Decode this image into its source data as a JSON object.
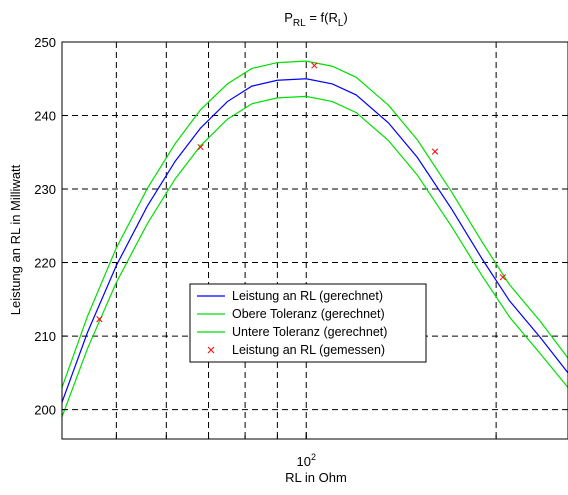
{
  "chart_data": {
    "type": "line",
    "title": {
      "base": "P",
      "sub1": "RL",
      "mid": " = f(R",
      "sub2": "L",
      "end": ")"
    },
    "xlabel": "RL in Ohm",
    "ylabel": "Leistung an RL in Milliwatt",
    "x_scale": "log",
    "xlim": [
      41,
      260
    ],
    "ylim": [
      196,
      250
    ],
    "x_tick_labels": [
      {
        "value": 100,
        "base": "10",
        "exp": "2"
      }
    ],
    "x_gridlines": [
      50,
      60,
      70,
      80,
      90,
      100,
      200
    ],
    "y_ticks": [
      200,
      210,
      220,
      230,
      240,
      250
    ],
    "grid": true,
    "legend_placement": "center-left",
    "colors": {
      "computed": "#0000ff",
      "tolerance": "#00e000",
      "measured": "#ff0000"
    },
    "series": [
      {
        "name": "Leistung an RL (gerechnet)",
        "kind": "line",
        "color": "#0000ff",
        "x": [
          41,
          45,
          50,
          56,
          62,
          68,
          75,
          82,
          90,
          100,
          110,
          120,
          135,
          150,
          170,
          190,
          210,
          235,
          260
        ],
        "y": [
          201.0,
          210.5,
          219.6,
          227.7,
          233.8,
          238.3,
          241.9,
          244.0,
          244.8,
          245.0,
          244.3,
          242.8,
          239.0,
          234.3,
          227.3,
          220.5,
          214.8,
          209.8,
          205.0
        ]
      },
      {
        "name": "Obere Toleranz (gerechnet)",
        "kind": "line",
        "color": "#00e000",
        "x": [
          41,
          45,
          50,
          56,
          62,
          68,
          75,
          82,
          90,
          100,
          110,
          120,
          135,
          150,
          170,
          190,
          210,
          235,
          260
        ],
        "y": [
          203.0,
          212.7,
          222.0,
          230.1,
          236.2,
          240.8,
          244.3,
          246.4,
          247.2,
          247.4,
          246.7,
          245.2,
          241.4,
          236.7,
          229.6,
          222.8,
          217.0,
          212.0,
          207.0
        ]
      },
      {
        "name": "Untere Toleranz (gerechnet)",
        "kind": "line",
        "color": "#00e000",
        "x": [
          41,
          45,
          50,
          56,
          62,
          68,
          75,
          82,
          90,
          100,
          110,
          120,
          135,
          150,
          170,
          190,
          210,
          235,
          260
        ],
        "y": [
          199.0,
          208.3,
          217.3,
          225.3,
          231.4,
          235.9,
          239.5,
          241.6,
          242.4,
          242.6,
          241.9,
          240.4,
          236.6,
          231.9,
          224.9,
          218.2,
          212.6,
          207.6,
          203.0
        ]
      },
      {
        "name": "Leistung an RL (gemessen)",
        "kind": "marker",
        "color": "#ff0000",
        "marker": "x",
        "x": [
          47,
          68,
          103,
          160,
          205
        ],
        "y": [
          212.3,
          235.7,
          246.8,
          235.1,
          218.0
        ]
      }
    ]
  }
}
